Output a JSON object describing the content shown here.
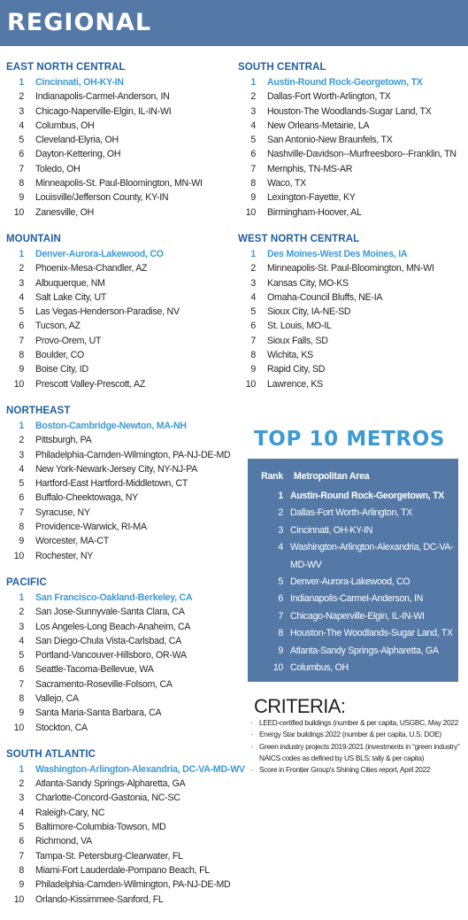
{
  "banner": {
    "title": "REGIONAL"
  },
  "regions": {
    "east_north_central": {
      "title": "EAST NORTH CENTRAL",
      "items": [
        {
          "rank": "1",
          "name": "Cincinnati, OH-KY-IN"
        },
        {
          "rank": "2",
          "name": "Indianapolis-Carmel-Anderson, IN"
        },
        {
          "rank": "3",
          "name": "Chicago-Naperville-Elgin, IL-IN-WI"
        },
        {
          "rank": "4",
          "name": "Columbus, OH"
        },
        {
          "rank": "5",
          "name": "Cleveland-Elyria, OH"
        },
        {
          "rank": "6",
          "name": "Dayton-Kettering, OH"
        },
        {
          "rank": "7",
          "name": "Toledo, OH"
        },
        {
          "rank": "8",
          "name": "Minneapolis-St. Paul-Bloomington, MN-WI"
        },
        {
          "rank": "9",
          "name": "Louisville/Jefferson County, KY-IN"
        },
        {
          "rank": "10",
          "name": "Zanesville, OH"
        }
      ]
    },
    "mountain": {
      "title": "MOUNTAIN",
      "items": [
        {
          "rank": "1",
          "name": "Denver-Aurora-Lakewood, CO"
        },
        {
          "rank": "2",
          "name": "Phoenix-Mesa-Chandler, AZ"
        },
        {
          "rank": "3",
          "name": "Albuquerque, NM"
        },
        {
          "rank": "4",
          "name": "Salt Lake City, UT"
        },
        {
          "rank": "5",
          "name": "Las Vegas-Henderson-Paradise, NV"
        },
        {
          "rank": "6",
          "name": "Tucson, AZ"
        },
        {
          "rank": "7",
          "name": "Provo-Orem, UT"
        },
        {
          "rank": "8",
          "name": "Boulder, CO"
        },
        {
          "rank": "9",
          "name": "Boise City, ID"
        },
        {
          "rank": "10",
          "name": "Prescott Valley-Prescott, AZ"
        }
      ]
    },
    "northeast": {
      "title": "NORTHEAST",
      "items": [
        {
          "rank": "1",
          "name": "Boston-Cambridge-Newton, MA-NH"
        },
        {
          "rank": "2",
          "name": "Pittsburgh, PA"
        },
        {
          "rank": "3",
          "name": "Philadelphia-Camden-Wilmington, PA-NJ-DE-MD"
        },
        {
          "rank": "4",
          "name": "New York-Newark-Jersey City, NY-NJ-PA"
        },
        {
          "rank": "5",
          "name": "Hartford-East Hartford-Middletown, CT"
        },
        {
          "rank": "6",
          "name": "Buffalo-Cheektowaga, NY"
        },
        {
          "rank": "7",
          "name": "Syracuse, NY"
        },
        {
          "rank": "8",
          "name": "Providence-Warwick, RI-MA"
        },
        {
          "rank": "9",
          "name": "Worcester, MA-CT"
        },
        {
          "rank": "10",
          "name": "Rochester, NY"
        }
      ]
    },
    "pacific": {
      "title": "PACIFIC",
      "items": [
        {
          "rank": "1",
          "name": "San Francisco-Oakland-Berkeley, CA"
        },
        {
          "rank": "2",
          "name": "San Jose-Sunnyvale-Santa Clara, CA"
        },
        {
          "rank": "3",
          "name": "Los Angeles-Long Beach-Anaheim, CA"
        },
        {
          "rank": "4",
          "name": "San Diego-Chula Vista-Carlsbad, CA"
        },
        {
          "rank": "5",
          "name": "Portland-Vancouver-Hillsboro, OR-WA"
        },
        {
          "rank": "6",
          "name": "Seattle-Tacoma-Bellevue, WA"
        },
        {
          "rank": "7",
          "name": "Sacramento-Roseville-Folsom, CA"
        },
        {
          "rank": "8",
          "name": "Vallejo, CA"
        },
        {
          "rank": "9",
          "name": "Santa Maria-Santa Barbara, CA"
        },
        {
          "rank": "10",
          "name": "Stockton, CA"
        }
      ]
    },
    "south_atlantic": {
      "title": "SOUTH ATLANTIC",
      "items": [
        {
          "rank": "1",
          "name": "Washington-Arlington-Alexandria, DC-VA-MD-WV"
        },
        {
          "rank": "2",
          "name": "Atlanta-Sandy Springs-Alpharetta, GA"
        },
        {
          "rank": "3",
          "name": "Charlotte-Concord-Gastonia, NC-SC"
        },
        {
          "rank": "4",
          "name": "Raleigh-Cary, NC"
        },
        {
          "rank": "5",
          "name": "Baltimore-Columbia-Towson, MD"
        },
        {
          "rank": "6",
          "name": "Richmond, VA"
        },
        {
          "rank": "7",
          "name": "Tampa-St. Petersburg-Clearwater, FL"
        },
        {
          "rank": "8",
          "name": "Miami-Fort Lauderdale-Pompano Beach, FL"
        },
        {
          "rank": "9",
          "name": "Philadelphia-Camden-Wilmington, PA-NJ-DE-MD"
        },
        {
          "rank": "10",
          "name": "Orlando-Kissimmee-Sanford, FL"
        }
      ]
    },
    "south_central": {
      "title": "SOUTH CENTRAL",
      "items": [
        {
          "rank": "1",
          "name": "Austin-Round Rock-Georgetown, TX"
        },
        {
          "rank": "2",
          "name": "Dallas-Fort Worth-Arlington, TX"
        },
        {
          "rank": "3",
          "name": "Houston-The Woodlands-Sugar Land, TX"
        },
        {
          "rank": "4",
          "name": "New Orleans-Metairie, LA"
        },
        {
          "rank": "5",
          "name": "San Antonio-New Braunfels, TX"
        },
        {
          "rank": "6",
          "name": "Nashville-Davidson--Murfreesboro--Franklin, TN"
        },
        {
          "rank": "7",
          "name": "Memphis, TN-MS-AR"
        },
        {
          "rank": "8",
          "name": "Waco, TX"
        },
        {
          "rank": "9",
          "name": "Lexington-Fayette, KY"
        },
        {
          "rank": "10",
          "name": "Birmingham-Hoover, AL"
        }
      ]
    },
    "west_north_central": {
      "title": "WEST NORTH CENTRAL",
      "items": [
        {
          "rank": "1",
          "name": "Des Moines-West Des Moines, IA"
        },
        {
          "rank": "2",
          "name": "Minneapolis-St. Paul-Bloomington, MN-WI"
        },
        {
          "rank": "3",
          "name": "Kansas City, MO-KS"
        },
        {
          "rank": "4",
          "name": "Omaha-Council Bluffs, NE-IA"
        },
        {
          "rank": "5",
          "name": "Sioux City, IA-NE-SD"
        },
        {
          "rank": "6",
          "name": "St. Louis, MO-IL"
        },
        {
          "rank": "7",
          "name": "Sioux Falls, SD"
        },
        {
          "rank": "8",
          "name": "Wichita, KS"
        },
        {
          "rank": "9",
          "name": "Rapid City, SD"
        },
        {
          "rank": "10",
          "name": "Lawrence, KS"
        }
      ]
    }
  },
  "top10": {
    "title": "TOP 10 METROS",
    "header_rank": "Rank",
    "header_area": "Metropolitan Area",
    "items": [
      {
        "rank": "1",
        "name": "Austin-Round Rock-Georgetown, TX"
      },
      {
        "rank": "2",
        "name": "Dallas-Fort Worth-Arlington, TX"
      },
      {
        "rank": "3",
        "name": "Cincinnati, OH-KY-IN"
      },
      {
        "rank": "4",
        "name": "Washington-Arlington-Alexandria, DC-VA-MD-WV"
      },
      {
        "rank": "5",
        "name": "Denver-Aurora-Lakewood, CO"
      },
      {
        "rank": "6",
        "name": "Indianapolis-Carmel-Anderson, IN"
      },
      {
        "rank": "7",
        "name": "Chicago-Naperville-Elgin, IL-IN-WI"
      },
      {
        "rank": "8",
        "name": "Houston-The Woodlands-Sugar Land, TX"
      },
      {
        "rank": "9",
        "name": "Atlanta-Sandy Springs-Alpharetta, GA"
      },
      {
        "rank": "10",
        "name": "Columbus, OH"
      }
    ]
  },
  "criteria": {
    "title": "CRITERIA:",
    "bullet": "·",
    "items": [
      "LEED-certified buildings (number & per capita, USGBC, May 2022",
      "Energy Star buildings 2022 (number & per capita, U.S. DOE)",
      "Green industry projects 2019-2021 (investments in “green industry” NAICS codes as defined by US BLS; tally & per capita)",
      "Score in Frontier Group's Shining Cities report, April 2022"
    ]
  },
  "colors": {
    "banner": "#5479a6",
    "accent": "#3c9ad4",
    "region_title": "#1f5fa0",
    "text": "#231f20"
  }
}
